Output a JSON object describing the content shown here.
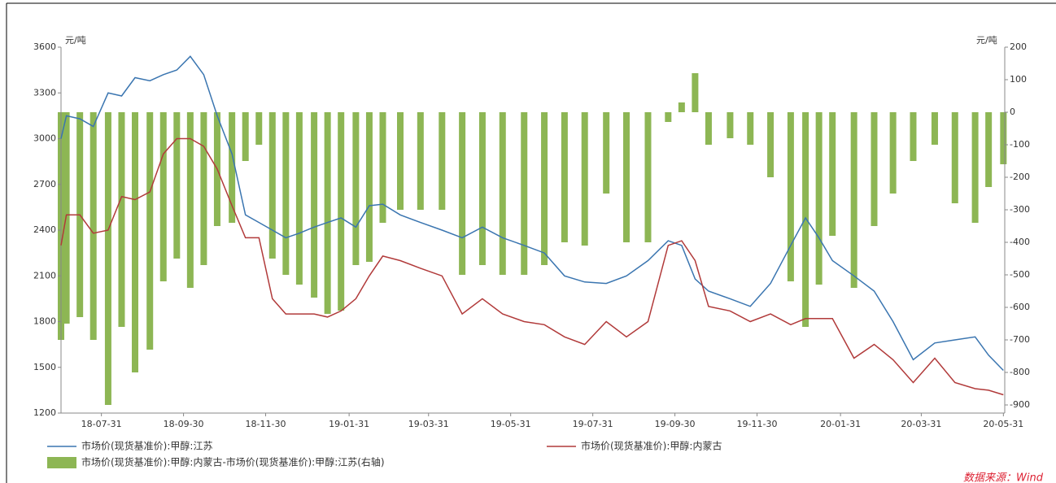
{
  "chart_data": {
    "type": "line",
    "y_unit": "元/吨",
    "y2_unit": "元/吨",
    "source": "数据来源：Wind",
    "x": [
      "18-07-01",
      "18-07-05",
      "18-07-15",
      "18-07-25",
      "18-08-05",
      "18-08-15",
      "18-08-25",
      "18-09-05",
      "18-09-15",
      "18-09-25",
      "18-10-05",
      "18-10-15",
      "18-10-25",
      "18-11-05",
      "18-11-15",
      "18-11-25",
      "18-12-05",
      "18-12-15",
      "18-12-25",
      "19-01-05",
      "19-01-15",
      "19-01-25",
      "19-02-05",
      "19-02-15",
      "19-02-25",
      "19-03-10",
      "19-03-25",
      "19-04-10",
      "19-04-25",
      "19-05-10",
      "19-05-25",
      "19-06-10",
      "19-06-25",
      "19-07-10",
      "19-07-25",
      "19-08-10",
      "19-08-25",
      "19-09-10",
      "19-09-25",
      "19-10-05",
      "19-10-15",
      "19-10-25",
      "19-11-10",
      "19-11-25",
      "19-12-10",
      "19-12-25",
      "20-01-05",
      "20-01-15",
      "20-01-25",
      "20-02-10",
      "20-02-25",
      "20-03-10",
      "20-03-25",
      "20-04-10",
      "20-04-25",
      "20-05-10",
      "20-05-20",
      "20-05-31"
    ],
    "xlim": [
      "18-07-01",
      "20-06-01"
    ],
    "xticks": [
      "18-07-31",
      "18-09-30",
      "18-11-30",
      "19-01-31",
      "19-03-31",
      "19-05-31",
      "19-07-31",
      "19-09-30",
      "19-11-30",
      "20-01-31",
      "20-03-31",
      "20-05-31"
    ],
    "ylim": [
      1200,
      3600
    ],
    "yticks": [
      1200,
      1500,
      1800,
      2100,
      2400,
      2700,
      3000,
      3300,
      3600
    ],
    "y2lim": [
      -925,
      200
    ],
    "y2ticks": [
      -900,
      -800,
      -700,
      -600,
      -500,
      -400,
      -300,
      -200,
      -100,
      0,
      100,
      200
    ],
    "series": [
      {
        "name": "市场价(现货基准价):甲醇:江苏",
        "color": "#3a75b0",
        "values": [
          3000,
          3150,
          3130,
          3080,
          3300,
          3280,
          3400,
          3380,
          3420,
          3450,
          3540,
          3420,
          3150,
          2900,
          2500,
          2450,
          2400,
          2350,
          2380,
          2420,
          2450,
          2480,
          2420,
          2560,
          2570,
          2500,
          2450,
          2400,
          2350,
          2420,
          2350,
          2300,
          2250,
          2100,
          2060,
          2050,
          2100,
          2200,
          2330,
          2300,
          2080,
          2000,
          1950,
          1900,
          2050,
          2300,
          2480,
          2350,
          2200,
          2100,
          2000,
          1800,
          1550,
          1660,
          1680,
          1700,
          1580,
          1480
        ]
      },
      {
        "name": "市场价(现货基准价):甲醇:内蒙古",
        "color": "#b13a3a",
        "values": [
          2300,
          2500,
          2500,
          2380,
          2400,
          2620,
          2600,
          2650,
          2900,
          3000,
          3000,
          2950,
          2800,
          2560,
          2350,
          2350,
          1950,
          1850,
          1850,
          1850,
          1830,
          1870,
          1950,
          2100,
          2230,
          2200,
          2150,
          2100,
          1850,
          1950,
          1850,
          1800,
          1780,
          1700,
          1650,
          1800,
          1700,
          1800,
          2300,
          2330,
          2200,
          1900,
          1870,
          1800,
          1850,
          1780,
          1820,
          1820,
          1820,
          1560,
          1650,
          1550,
          1400,
          1560,
          1400,
          1360,
          1350,
          1320
        ]
      },
      {
        "name": "市场价(现货基准价):甲醇:内蒙古-市场价(现货基准价):甲醇:江苏(右轴)",
        "color": "#8db654",
        "type": "bar",
        "axis": "y2",
        "values": [
          -700,
          -650,
          -630,
          -700,
          -900,
          -660,
          -800,
          -730,
          -520,
          -450,
          -540,
          -470,
          -350,
          -340,
          -150,
          -100,
          -450,
          -500,
          -530,
          -570,
          -620,
          -610,
          -470,
          -460,
          -340,
          -300,
          -300,
          -300,
          -500,
          -470,
          -500,
          -500,
          -470,
          -400,
          -410,
          -250,
          -400,
          -400,
          -30,
          30,
          120,
          -100,
          -80,
          -100,
          -200,
          -520,
          -660,
          -530,
          -380,
          -540,
          -350,
          -250,
          -150,
          -100,
          -280,
          -340,
          -230,
          -160
        ]
      }
    ]
  }
}
